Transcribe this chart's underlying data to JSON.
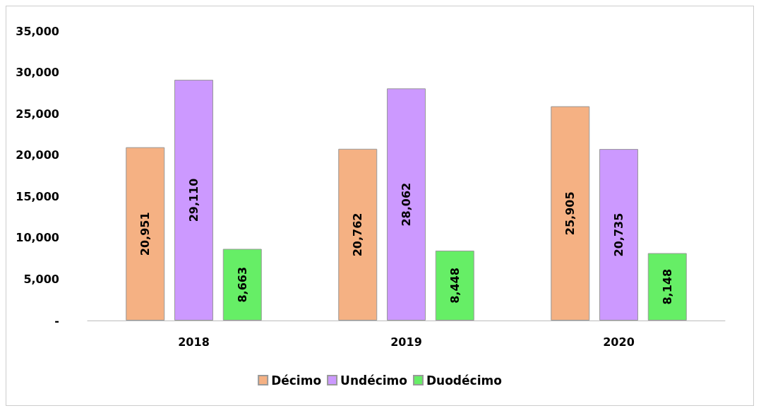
{
  "chart_data": {
    "type": "bar",
    "categories": [
      "2018",
      "2019",
      "2020"
    ],
    "series": [
      {
        "name": "Décimo",
        "color": "#f5b183",
        "values": [
          20951,
          20762,
          25905
        ],
        "value_labels": [
          "20,951",
          "20,762",
          "25,905"
        ]
      },
      {
        "name": "Undécimo",
        "color": "#cc99ff",
        "values": [
          29110,
          28062,
          20735
        ],
        "value_labels": [
          "29,110",
          "28,062",
          "20,735"
        ]
      },
      {
        "name": "Duodécimo",
        "color": "#66ee66",
        "values": [
          8663,
          8448,
          8148
        ],
        "value_labels": [
          "8,663",
          "8,448",
          "8,148"
        ]
      }
    ],
    "ylim": [
      0,
      35000
    ],
    "yticks": [
      {
        "value": 0,
        "label": "-"
      },
      {
        "value": 5000,
        "label": "5,000"
      },
      {
        "value": 10000,
        "label": "10,000"
      },
      {
        "value": 15000,
        "label": "15,000"
      },
      {
        "value": 20000,
        "label": "20,000"
      },
      {
        "value": 25000,
        "label": "25,000"
      },
      {
        "value": 30000,
        "label": "30,000"
      },
      {
        "value": 35000,
        "label": "35,000"
      }
    ],
    "grid": false,
    "legend": "bottom"
  }
}
